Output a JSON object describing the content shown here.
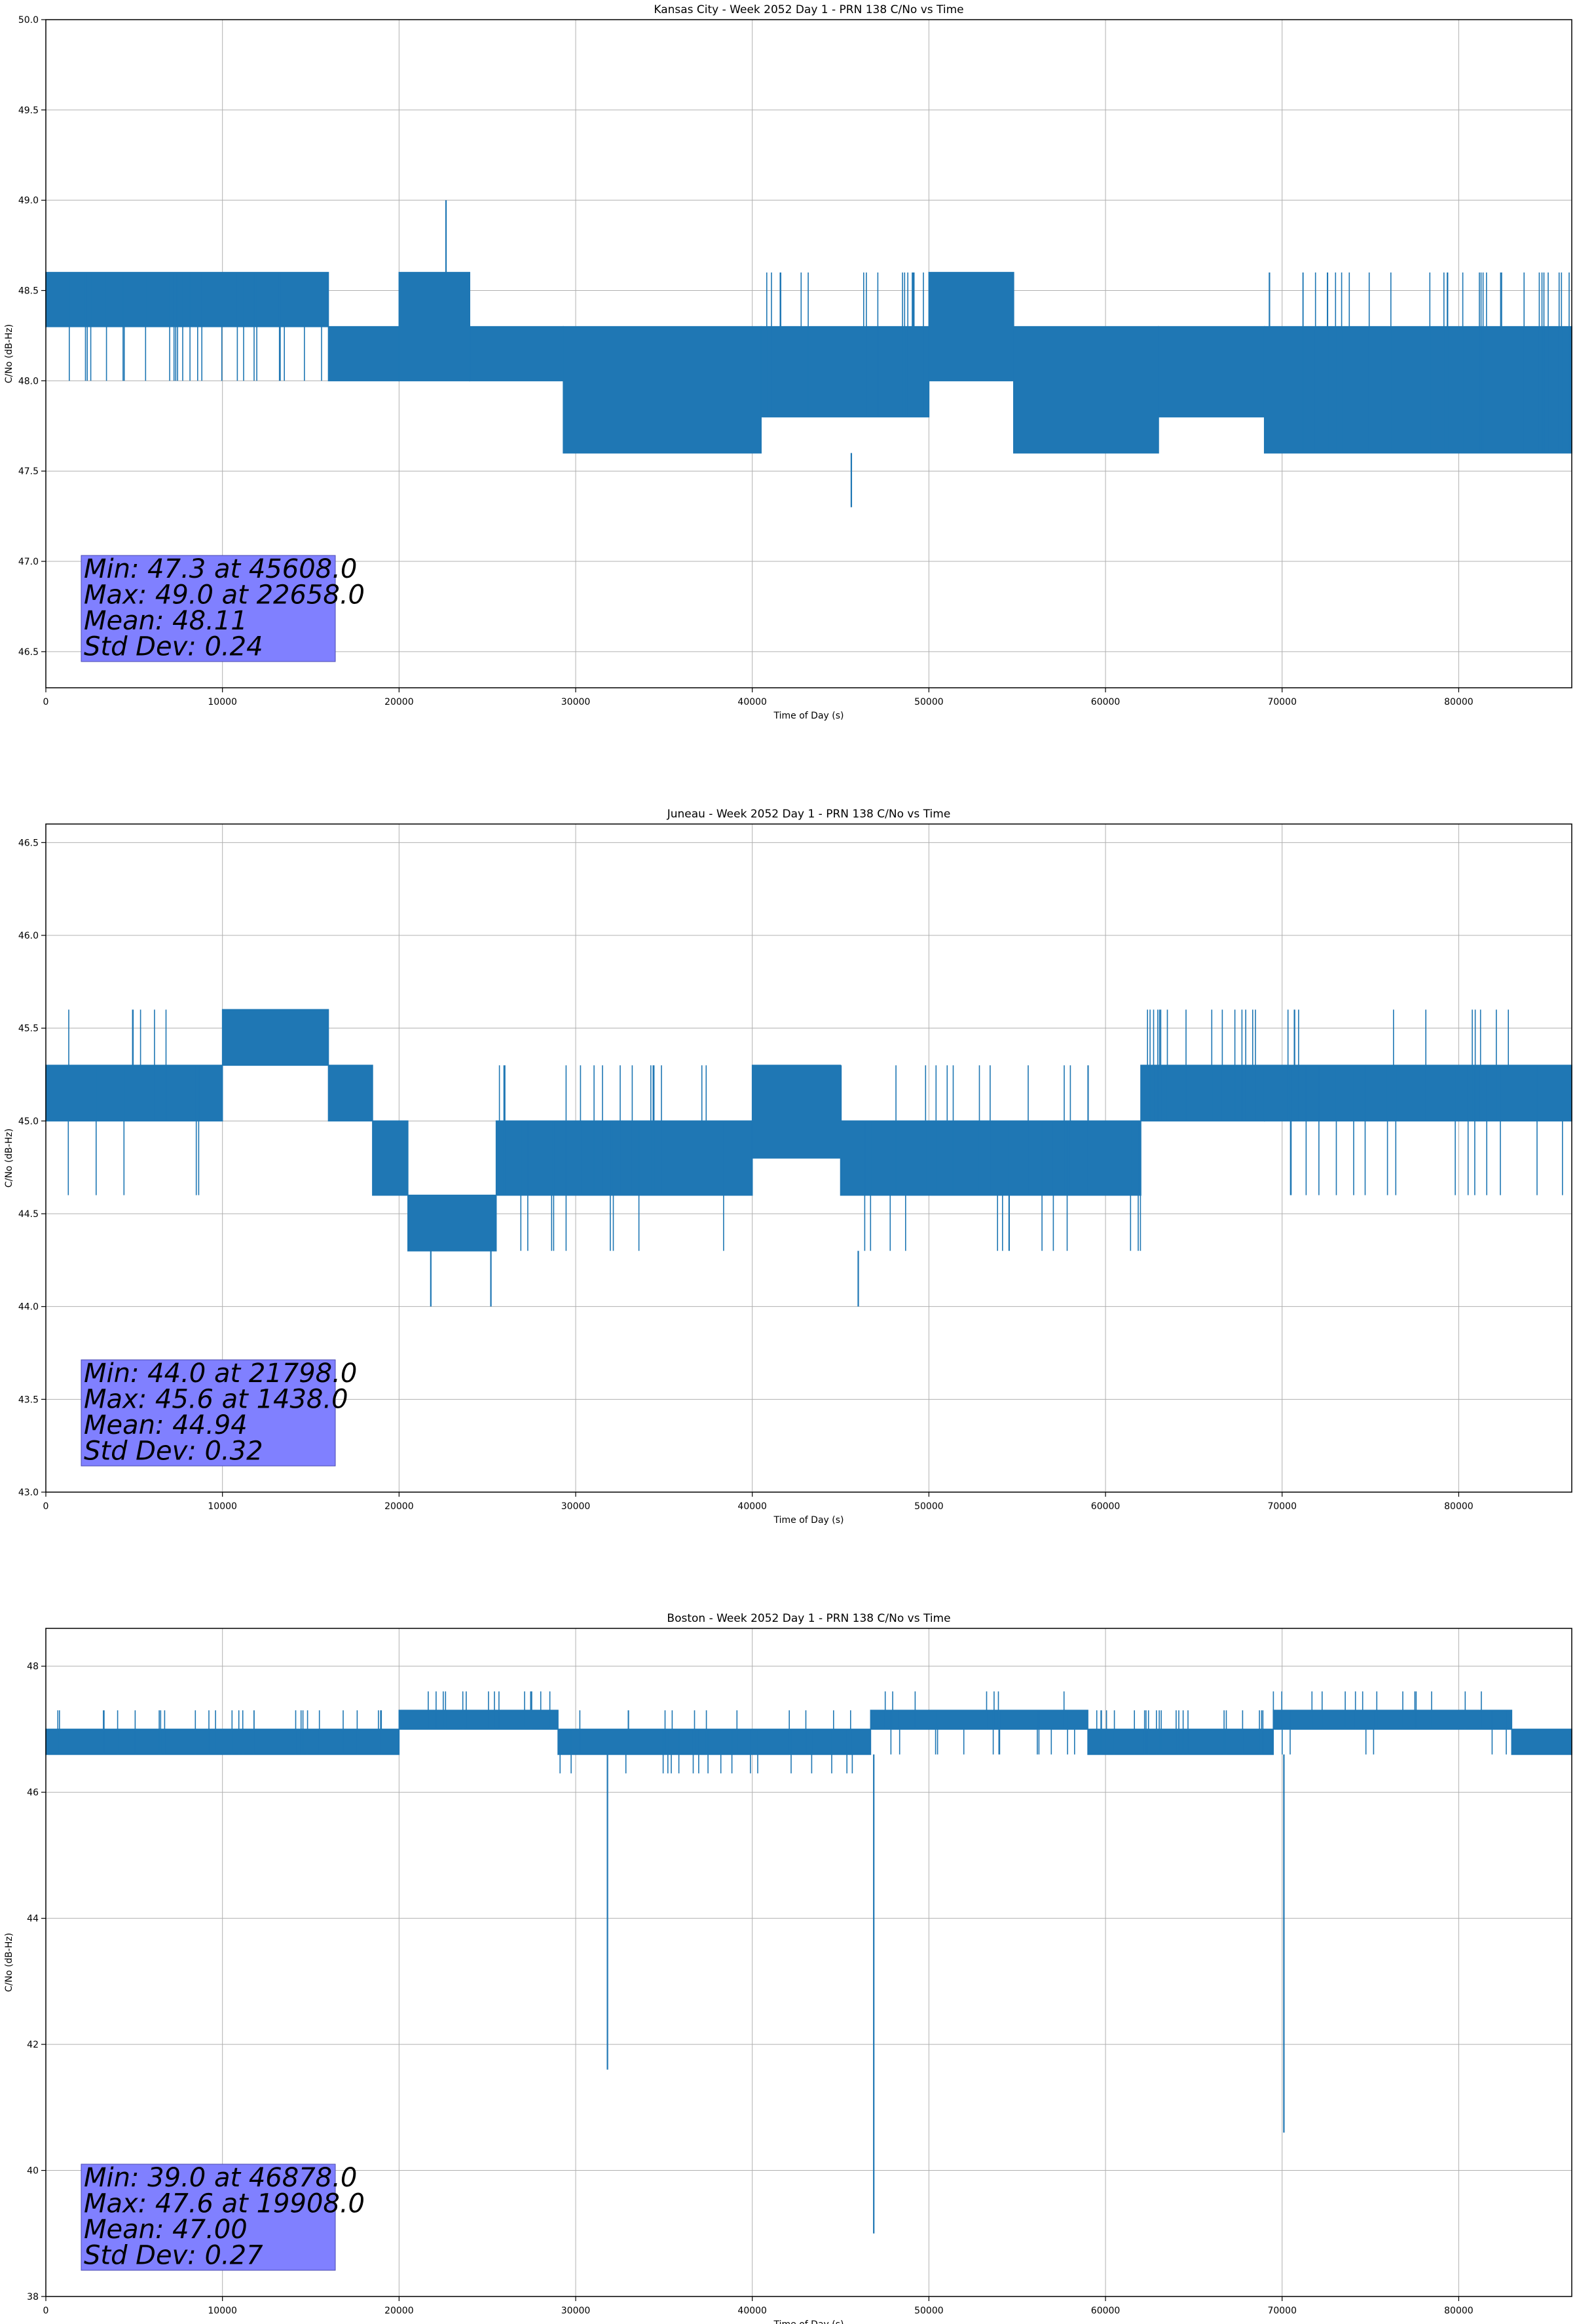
{
  "chart_data": [
    {
      "type": "line",
      "title": "Kansas City - Week 2052 Day 1 - PRN 138 C/No vs Time",
      "xlabel": "Time of Day (s)",
      "ylabel": "C/No (dB-Hz)",
      "xlim": [
        0,
        86400
      ],
      "ylim": [
        46.3,
        50.0
      ],
      "xticks": [
        0,
        10000,
        20000,
        30000,
        40000,
        50000,
        60000,
        70000,
        80000
      ],
      "yticks": [
        46.5,
        47.0,
        47.5,
        48.0,
        48.5,
        49.0,
        49.5,
        50.0
      ],
      "ytick_decimals": 1,
      "grid": true,
      "series_color": "#1f77b4",
      "stats_box_color": "#8080ff",
      "stats": [
        "Min: 47.3 at 45608.0",
        "Max: 49.0 at 22658.0",
        "Mean: 48.11",
        "Std Dev: 0.24"
      ],
      "series": [
        {
          "bands": [
            {
              "x": [
                0,
                16000
              ],
              "y": [
                48.3,
                48.6
              ],
              "extra": [
                48.0
              ]
            },
            {
              "x": [
                16000,
                20000
              ],
              "y": [
                48.0,
                48.3
              ]
            },
            {
              "x": [
                20000,
                24000
              ],
              "y": [
                48.0,
                48.6
              ]
            },
            {
              "x": [
                24000,
                29300
              ],
              "y": [
                48.0,
                48.3
              ]
            },
            {
              "x": [
                29300,
                40500
              ],
              "y": [
                47.6,
                48.3
              ]
            },
            {
              "x": [
                40500,
                50000
              ],
              "y": [
                47.8,
                48.3
              ],
              "extra": [
                48.6
              ]
            },
            {
              "x": [
                50000,
                54800
              ],
              "y": [
                48.0,
                48.6
              ]
            },
            {
              "x": [
                54800,
                63000
              ],
              "y": [
                47.6,
                48.3
              ]
            },
            {
              "x": [
                63000,
                69000
              ],
              "y": [
                47.8,
                48.3
              ]
            },
            {
              "x": [
                69000,
                86400
              ],
              "y": [
                47.6,
                48.3
              ],
              "extra": [
                48.6
              ]
            }
          ],
          "spikes": [
            {
              "x": 22658,
              "y0": 48.0,
              "y1": 49.0
            },
            {
              "x": 45608,
              "y0": 47.6,
              "y1": 47.3
            }
          ]
        }
      ]
    },
    {
      "type": "line",
      "title": "Juneau - Week 2052 Day 1 - PRN 138 C/No vs Time",
      "xlabel": "Time of Day (s)",
      "ylabel": "C/No (dB-Hz)",
      "xlim": [
        0,
        86400
      ],
      "ylim": [
        43.0,
        46.6
      ],
      "xticks": [
        0,
        10000,
        20000,
        30000,
        40000,
        50000,
        60000,
        70000,
        80000
      ],
      "yticks": [
        43.0,
        43.5,
        44.0,
        44.5,
        45.0,
        45.5,
        46.0,
        46.5
      ],
      "ytick_decimals": 1,
      "grid": true,
      "series_color": "#1f77b4",
      "stats_box_color": "#8080ff",
      "stats": [
        "Min: 44.0 at 21798.0",
        "Max: 45.6 at 1438.0",
        "Mean: 44.94",
        "Std Dev: 0.32"
      ],
      "series": [
        {
          "bands": [
            {
              "x": [
                0,
                10000
              ],
              "y": [
                45.0,
                45.3
              ],
              "extra": [
                45.6,
                44.6
              ]
            },
            {
              "x": [
                10000,
                16000
              ],
              "y": [
                45.3,
                45.6
              ]
            },
            {
              "x": [
                16000,
                18500
              ],
              "y": [
                45.0,
                45.3
              ]
            },
            {
              "x": [
                18500,
                20500
              ],
              "y": [
                44.6,
                45.0
              ]
            },
            {
              "x": [
                20500,
                25500
              ],
              "y": [
                44.3,
                44.6
              ]
            },
            {
              "x": [
                25500,
                40000
              ],
              "y": [
                44.6,
                45.0
              ],
              "extra": [
                44.3,
                45.3
              ]
            },
            {
              "x": [
                40000,
                45000
              ],
              "y": [
                44.8,
                45.3
              ]
            },
            {
              "x": [
                45000,
                62000
              ],
              "y": [
                44.6,
                45.0
              ],
              "extra": [
                44.3,
                45.3
              ]
            },
            {
              "x": [
                62000,
                69000
              ],
              "y": [
                45.0,
                45.3
              ],
              "extra": [
                45.6
              ]
            },
            {
              "x": [
                69000,
                86400
              ],
              "y": [
                45.0,
                45.3
              ],
              "extra": [
                45.6,
                44.6
              ]
            }
          ],
          "spikes": [
            {
              "x": 21798,
              "y0": 44.3,
              "y1": 44.0
            },
            {
              "x": 25200,
              "y0": 44.3,
              "y1": 44.0
            },
            {
              "x": 46000,
              "y0": 44.3,
              "y1": 44.0
            }
          ]
        }
      ]
    },
    {
      "type": "line",
      "title": "Boston - Week 2052 Day 1 - PRN 138 C/No vs Time",
      "xlabel": "Time of Day (s)",
      "ylabel": "C/No (dB-Hz)",
      "xlim": [
        0,
        86400
      ],
      "ylim": [
        38,
        48.6
      ],
      "xticks": [
        0,
        10000,
        20000,
        30000,
        40000,
        50000,
        60000,
        70000,
        80000
      ],
      "yticks": [
        38,
        40,
        42,
        44,
        46,
        48
      ],
      "ytick_decimals": 0,
      "grid": true,
      "series_color": "#1f77b4",
      "stats_box_color": "#8080ff",
      "stats": [
        "Min: 39.0 at 46878.0",
        "Max: 47.6 at 19908.0",
        "Mean: 47.00",
        "Std Dev: 0.27"
      ],
      "series": [
        {
          "bands": [
            {
              "x": [
                0,
                20000
              ],
              "y": [
                46.6,
                47.0
              ],
              "extra": [
                47.3
              ]
            },
            {
              "x": [
                20000,
                29000
              ],
              "y": [
                47.0,
                47.3
              ],
              "extra": [
                47.6
              ]
            },
            {
              "x": [
                29000,
                46700
              ],
              "y": [
                46.6,
                47.0
              ],
              "extra": [
                46.3,
                47.3
              ]
            },
            {
              "x": [
                46700,
                59000
              ],
              "y": [
                47.0,
                47.3
              ],
              "extra": [
                47.6,
                46.6
              ]
            },
            {
              "x": [
                59000,
                69500
              ],
              "y": [
                46.6,
                47.0
              ],
              "extra": [
                47.3
              ]
            },
            {
              "x": [
                69500,
                83000
              ],
              "y": [
                47.0,
                47.3
              ],
              "extra": [
                47.6,
                46.6
              ]
            },
            {
              "x": [
                83000,
                86400
              ],
              "y": [
                46.6,
                47.0
              ]
            }
          ],
          "spikes": [
            {
              "x": 31800,
              "y0": 46.6,
              "y1": 41.6
            },
            {
              "x": 46878,
              "y0": 46.6,
              "y1": 39.0
            },
            {
              "x": 70100,
              "y0": 46.6,
              "y1": 40.6
            }
          ]
        }
      ]
    }
  ]
}
